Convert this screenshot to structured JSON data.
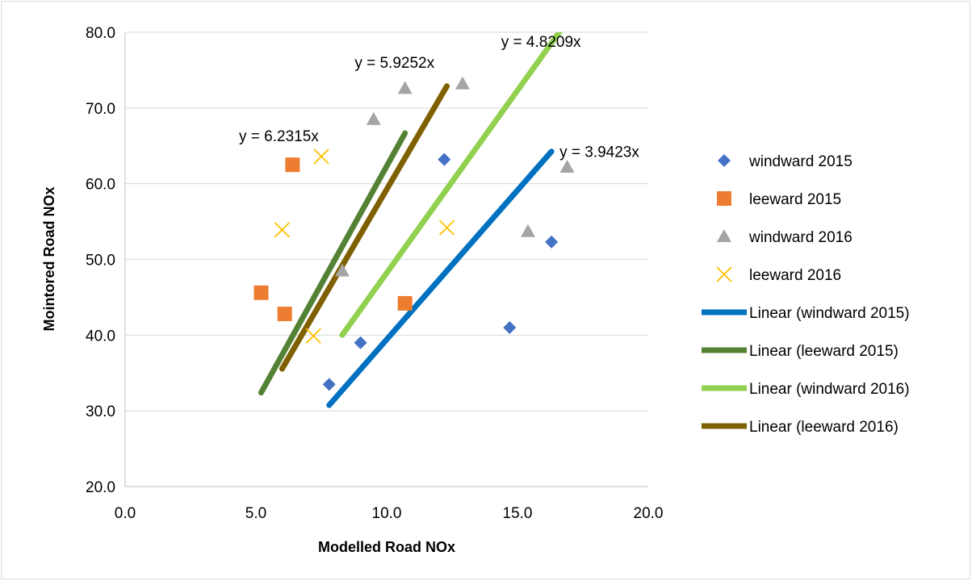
{
  "chart_data": {
    "type": "scatter",
    "title": "",
    "xlabel": "Modelled Road NOx",
    "ylabel": "Mointored Road NOx",
    "xlim": [
      0,
      20
    ],
    "ylim": [
      20,
      80
    ],
    "x_ticks": [
      "0.0",
      "5.0",
      "10.0",
      "15.0",
      "20.0"
    ],
    "y_ticks": [
      "20.0",
      "30.0",
      "40.0",
      "50.0",
      "60.0",
      "70.0",
      "80.0"
    ],
    "grid": "horizontal",
    "legend_position": "right",
    "series": [
      {
        "name": "windward 2015",
        "marker": "diamond",
        "color": "#4472C4",
        "points": [
          [
            7.8,
            33.5
          ],
          [
            9.0,
            39.0
          ],
          [
            12.2,
            63.2
          ],
          [
            14.7,
            41.0
          ],
          [
            16.3,
            52.3
          ]
        ]
      },
      {
        "name": "leeward 2015",
        "marker": "square",
        "color": "#ED7D31",
        "points": [
          [
            5.2,
            45.6
          ],
          [
            6.1,
            42.8
          ],
          [
            6.4,
            62.5
          ],
          [
            10.7,
            44.2
          ]
        ]
      },
      {
        "name": "windward 2016",
        "marker": "triangle",
        "color": "#A5A5A5",
        "points": [
          [
            8.3,
            48.5
          ],
          [
            9.5,
            68.5
          ],
          [
            10.7,
            72.6
          ],
          [
            12.9,
            73.2
          ],
          [
            15.4,
            53.7
          ],
          [
            16.9,
            62.2
          ]
        ]
      },
      {
        "name": "leeward 2016",
        "marker": "x",
        "color": "#FFC000",
        "points": [
          [
            6.0,
            53.9
          ],
          [
            7.2,
            39.9
          ],
          [
            7.5,
            63.6
          ],
          [
            12.3,
            54.2
          ]
        ]
      }
    ],
    "trendlines": [
      {
        "name": "Linear (windward 2015)",
        "color": "#0070C0",
        "slope": 3.9423,
        "x_range": [
          7.8,
          16.3
        ],
        "equation": "y = 3.9423x"
      },
      {
        "name": "Linear (leeward 2015)",
        "color": "#548235",
        "slope": 6.2315,
        "x_range": [
          5.2,
          10.7
        ],
        "equation": "y = 6.2315x"
      },
      {
        "name": "Linear (windward 2016)",
        "color": "#92D050",
        "slope": 4.8209,
        "x_range": [
          8.3,
          16.9
        ],
        "equation": "y = 4.8209x"
      },
      {
        "name": "Linear (leeward 2016)",
        "color": "#7F6000",
        "slope": 5.9252,
        "x_range": [
          6.0,
          12.3
        ],
        "equation": "y = 5.9252x"
      }
    ]
  }
}
